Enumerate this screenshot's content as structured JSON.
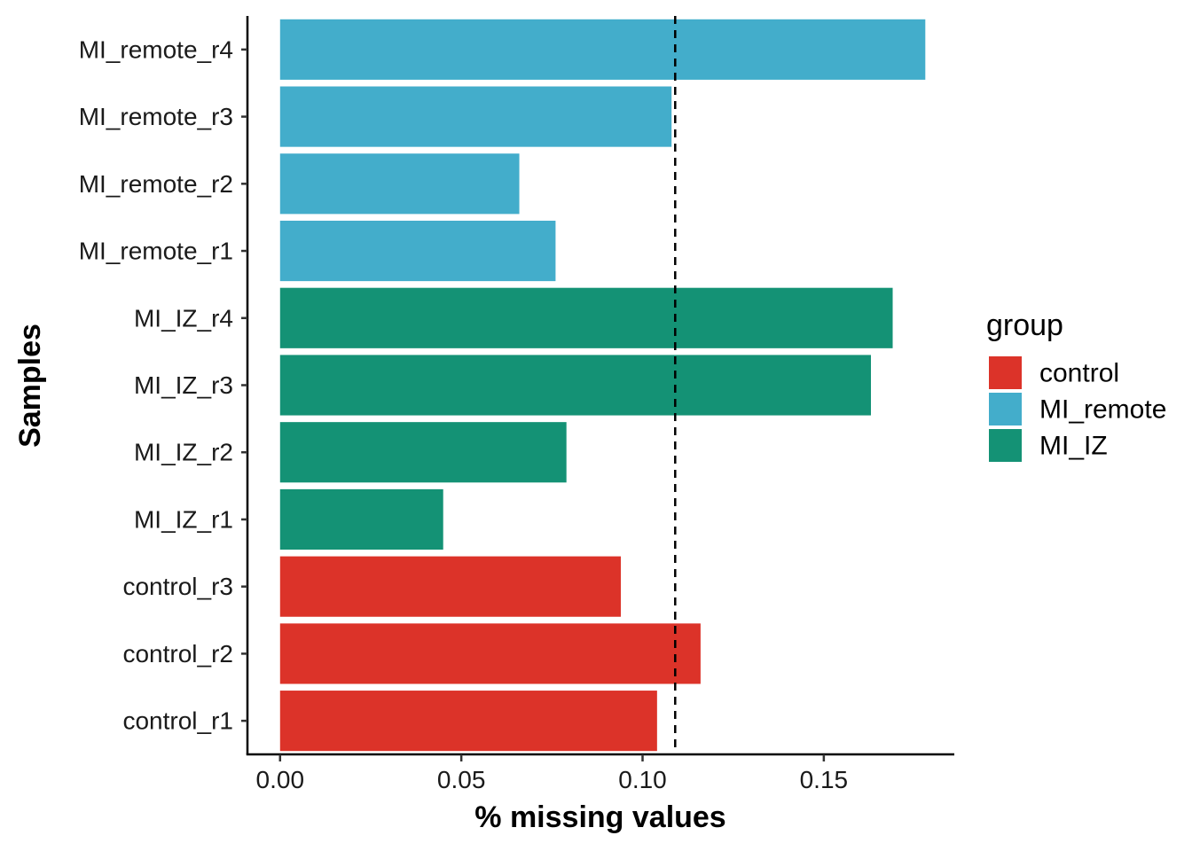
{
  "chart_data": {
    "type": "bar",
    "orientation": "horizontal",
    "xlabel": "% missing values",
    "ylabel": "Samples",
    "xlim": [
      -0.009,
      0.186
    ],
    "x_ticks": [
      0.0,
      0.05,
      0.1,
      0.15
    ],
    "x_tick_labels": [
      "0.00",
      "0.05",
      "0.10",
      "0.15"
    ],
    "reference_line": {
      "x": 0.109,
      "style": "dashed"
    },
    "grid": false,
    "legend": {
      "title": "group",
      "position": "right",
      "entries": [
        {
          "name": "control",
          "color": "#DC3329"
        },
        {
          "name": "MI_remote",
          "color": "#43ADCB"
        },
        {
          "name": "MI_IZ",
          "color": "#149275"
        }
      ]
    },
    "categories": [
      "MI_remote_r4",
      "MI_remote_r3",
      "MI_remote_r2",
      "MI_remote_r1",
      "MI_IZ_r4",
      "MI_IZ_r3",
      "MI_IZ_r2",
      "MI_IZ_r1",
      "control_r3",
      "control_r2",
      "control_r1"
    ],
    "groups": [
      "MI_remote",
      "MI_remote",
      "MI_remote",
      "MI_remote",
      "MI_IZ",
      "MI_IZ",
      "MI_IZ",
      "MI_IZ",
      "control",
      "control",
      "control"
    ],
    "values": [
      0.178,
      0.108,
      0.066,
      0.076,
      0.169,
      0.163,
      0.079,
      0.045,
      0.094,
      0.116,
      0.104
    ]
  }
}
